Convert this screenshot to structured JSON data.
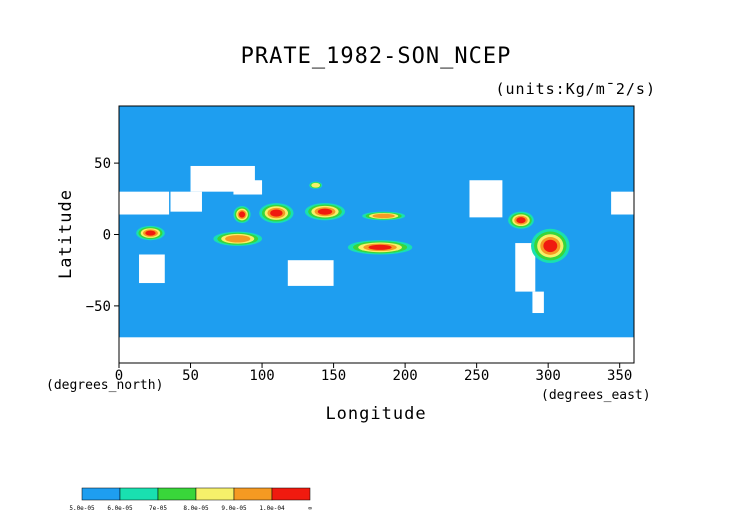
{
  "chart_data": {
    "type": "heatmap",
    "title": "PRATE_1982-SON_NCEP",
    "units_label": "(units:Kg/m¯2/s)",
    "xlabel": "Longitude",
    "ylabel": "Latitude",
    "x_note": "(degrees_north)",
    "x_unit": "(degrees_east)",
    "xlim": [
      0,
      360
    ],
    "ylim": [
      -90,
      90
    ],
    "xticks": [
      0,
      50,
      100,
      150,
      200,
      250,
      300,
      350
    ],
    "yticks": [
      50,
      0,
      -50
    ],
    "xtick_labels": [
      "0",
      "50",
      "100",
      "150",
      "200",
      "250",
      "300",
      "350"
    ],
    "ytick_labels": [
      "50",
      "0",
      "−50"
    ],
    "background_color": "#1e9ef0",
    "colorbar": {
      "colors": [
        "#1e9ef0",
        "#19e0b0",
        "#39d63a",
        "#f6f06a",
        "#f59a22",
        "#f01a0f"
      ],
      "labels": [
        "5.0e-05",
        "6.0e-05",
        "7e-05",
        "8.0e-05",
        "9.0e-05",
        "1.0e-04",
        "∞"
      ]
    },
    "missing_regions": [
      {
        "name": "Sahara",
        "lon": [
          -16,
          35
        ],
        "lat": [
          14,
          30
        ]
      },
      {
        "name": "Arabia",
        "lon": [
          36,
          58
        ],
        "lat": [
          16,
          30
        ]
      },
      {
        "name": "Central Asia",
        "lon": [
          50,
          95
        ],
        "lat": [
          30,
          48
        ]
      },
      {
        "name": "Tibet",
        "lon": [
          80,
          100
        ],
        "lat": [
          28,
          38
        ]
      },
      {
        "name": "Southern Africa",
        "lon": [
          14,
          32
        ],
        "lat": [
          -34,
          -14
        ]
      },
      {
        "name": "Australia",
        "lon": [
          118,
          150
        ],
        "lat": [
          -36,
          -18
        ]
      },
      {
        "name": "Western US / Mexico",
        "lon": [
          245,
          268
        ],
        "lat": [
          12,
          38
        ]
      },
      {
        "name": "South America West",
        "lon": [
          277,
          291
        ],
        "lat": [
          -40,
          -6
        ]
      },
      {
        "name": "Patagonia",
        "lon": [
          289,
          297
        ],
        "lat": [
          -55,
          -40
        ]
      },
      {
        "name": "Antarctica",
        "lon": [
          0,
          360
        ],
        "lat": [
          -90,
          -72
        ]
      }
    ],
    "precip_features": [
      {
        "name": "Central Africa",
        "lon": [
          12,
          32
        ],
        "lat": [
          -4,
          6
        ],
        "level": 5
      },
      {
        "name": "Bay of Bengal",
        "lon": [
          80,
          92
        ],
        "lat": [
          8,
          20
        ],
        "level": 5
      },
      {
        "name": "Indian Ocean ITCZ",
        "lon": [
          66,
          100
        ],
        "lat": [
          -8,
          2
        ],
        "level": 4
      },
      {
        "name": "Indochina / South China Sea",
        "lon": [
          98,
          122
        ],
        "lat": [
          8,
          22
        ],
        "level": 5
      },
      {
        "name": "NW Pacific",
        "lon": [
          130,
          158
        ],
        "lat": [
          10,
          22
        ],
        "level": 5
      },
      {
        "name": "North Pacific ITCZ",
        "lon": [
          170,
          200
        ],
        "lat": [
          10,
          16
        ],
        "level": 4
      },
      {
        "name": "SPCZ",
        "lon": [
          160,
          205
        ],
        "lat": [
          -14,
          -4
        ],
        "level": 5
      },
      {
        "name": "Central America",
        "lon": [
          272,
          290
        ],
        "lat": [
          4,
          16
        ],
        "level": 5
      },
      {
        "name": "Amazon",
        "lon": [
          288,
          315
        ],
        "lat": [
          -20,
          4
        ],
        "level": 5
      },
      {
        "name": "Japan",
        "lon": [
          133,
          142
        ],
        "lat": [
          32,
          37
        ],
        "level": 3
      }
    ]
  }
}
